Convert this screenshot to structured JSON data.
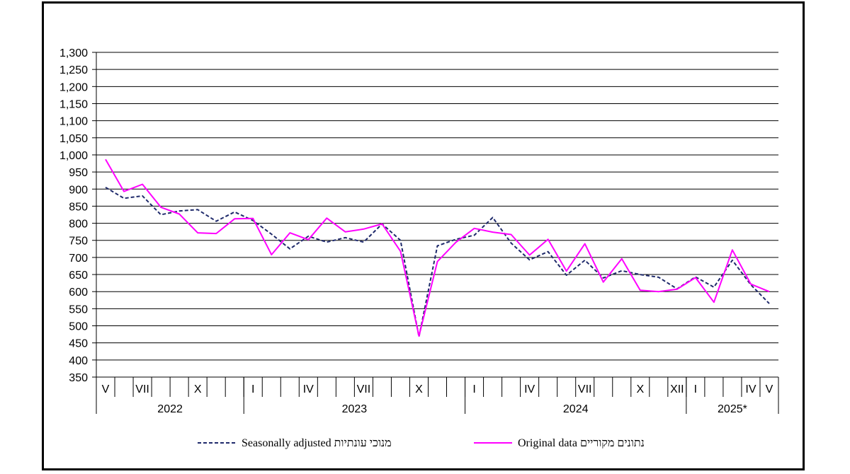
{
  "chart_data": {
    "type": "line",
    "title": "",
    "xlabel": "",
    "ylabel": "",
    "ylim": [
      350,
      1300
    ],
    "ytick_step": 50,
    "yticks": [
      "350",
      "400",
      "450",
      "500",
      "550",
      "600",
      "650",
      "700",
      "750",
      "800",
      "850",
      "900",
      "950",
      "1,000",
      "1,050",
      "1,100",
      "1,150",
      "1,200",
      "1,250",
      "1,300"
    ],
    "grid": true,
    "x_start_month": "2022-05",
    "months": [
      "V",
      "",
      "VII",
      "",
      "",
      "X",
      "",
      "",
      "I",
      "",
      "",
      "IV",
      "",
      "",
      "VII",
      "",
      "",
      "X",
      "",
      "",
      "I",
      "",
      "",
      "IV",
      "",
      "",
      "VII",
      "",
      "",
      "X",
      "",
      "XII",
      "I",
      "",
      "",
      "IV",
      "V"
    ],
    "years": [
      {
        "label": "2022",
        "months": 8
      },
      {
        "label": "2023",
        "months": 12
      },
      {
        "label": "2024",
        "months": 12
      },
      {
        "label": "2025*",
        "months": 5
      }
    ],
    "series": [
      {
        "name": "Seasonally adjusted מנוכי עונתיות",
        "color": "#1f2a6b",
        "style": "dashed",
        "values": [
          905,
          873,
          880,
          825,
          836,
          840,
          806,
          833,
          808,
          768,
          725,
          762,
          745,
          758,
          745,
          798,
          750,
          468,
          734,
          753,
          765,
          817,
          742,
          693,
          717,
          648,
          692,
          640,
          661,
          650,
          642,
          608,
          643,
          613,
          692,
          620,
          565
        ]
      },
      {
        "name": "Original data נתונים מקוריים",
        "color": "#ff00ff",
        "style": "solid",
        "values": [
          987,
          893,
          914,
          847,
          827,
          772,
          770,
          813,
          814,
          708,
          772,
          752,
          815,
          775,
          783,
          798,
          718,
          470,
          688,
          744,
          785,
          774,
          767,
          707,
          753,
          660,
          740,
          628,
          696,
          604,
          600,
          607,
          641,
          569,
          722,
          622,
          600
        ]
      }
    ],
    "legend": {
      "position": "bottom",
      "items": [
        "Seasonally adjusted מנוכי עונתיות",
        "Original data נתונים מקוריים"
      ]
    }
  }
}
